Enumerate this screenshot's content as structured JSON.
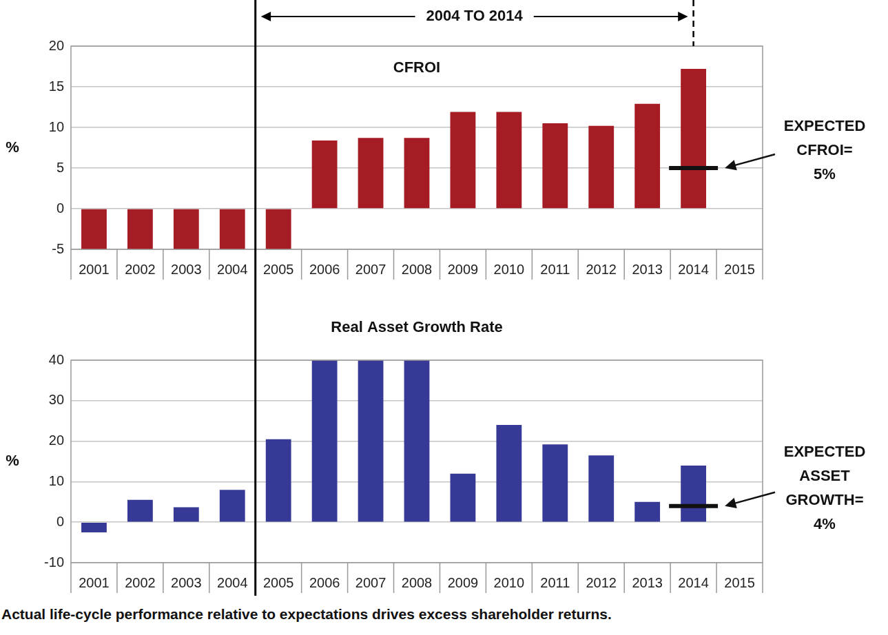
{
  "chart_data": [
    {
      "type": "bar",
      "title": "CFROI",
      "y_label": "%",
      "categories": [
        "2001",
        "2002",
        "2003",
        "2004",
        "2005",
        "2006",
        "2007",
        "2008",
        "2009",
        "2010",
        "2011",
        "2012",
        "2013",
        "2014",
        "2015"
      ],
      "values": [
        -5,
        -5,
        -5,
        -5,
        -5,
        8.4,
        8.7,
        8.7,
        11.9,
        11.9,
        10.5,
        10.2,
        12.9,
        17.2,
        null
      ],
      "color": "#a51c24",
      "ylim": [
        -5,
        20
      ],
      "yticks": [
        -5,
        0,
        5,
        10,
        15,
        20
      ],
      "grid": true,
      "expected": {
        "category": "2014",
        "value": 5,
        "label": [
          "EXPECTED",
          "CFROI=",
          "5%"
        ]
      }
    },
    {
      "type": "bar",
      "title": "Real Asset Growth Rate",
      "y_label": "%",
      "categories": [
        "2001",
        "2002",
        "2003",
        "2004",
        "2005",
        "2006",
        "2007",
        "2008",
        "2009",
        "2010",
        "2011",
        "2012",
        "2013",
        "2014",
        "2015"
      ],
      "values": [
        -2.5,
        5.5,
        3.7,
        8,
        20.5,
        40,
        40,
        40,
        12,
        24,
        19.2,
        16.5,
        5,
        14,
        null
      ],
      "color": "#363a96",
      "ylim": [
        -10,
        40
      ],
      "yticks": [
        -10,
        0,
        10,
        20,
        30,
        40
      ],
      "grid": true,
      "expected": {
        "category": "2014",
        "value": 4,
        "label": [
          "EXPECTED",
          "ASSET",
          "GROWTH=",
          "4%"
        ]
      }
    }
  ],
  "period": {
    "label": "2004 TO 2014",
    "from": "2004",
    "to": "2014"
  },
  "caption": "Actual life-cycle performance relative to expectations drives excess shareholder returns."
}
